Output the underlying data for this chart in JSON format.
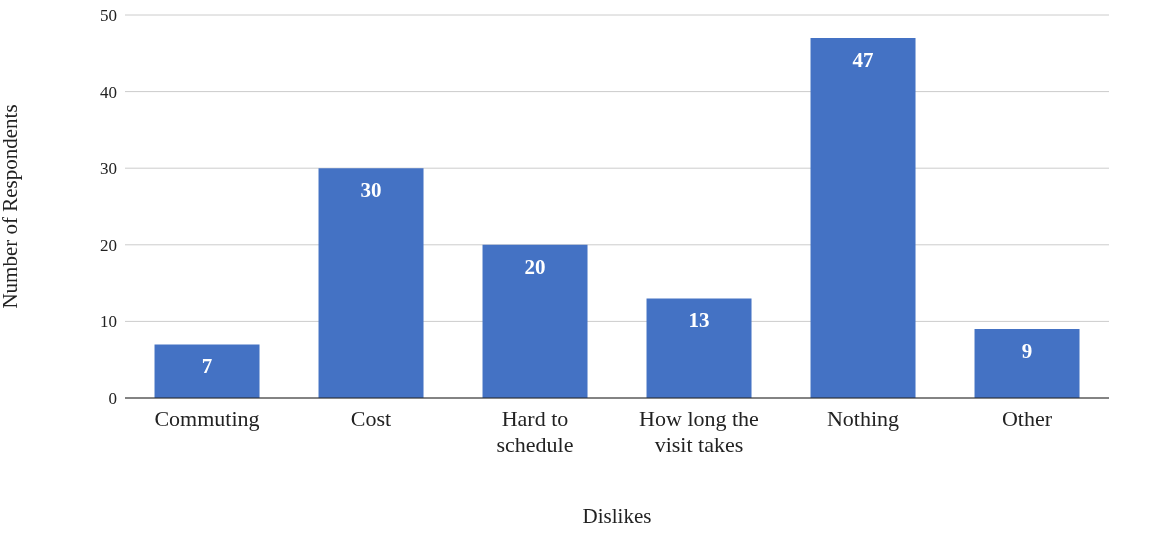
{
  "chart_data": {
    "type": "bar",
    "xlabel": "Dislikes",
    "ylabel": "Number of Respondents",
    "categories": [
      "Commuting",
      "Cost",
      "Hard to schedule",
      "How long the visit takes",
      "Nothing",
      "Other"
    ],
    "values": [
      7,
      30,
      20,
      13,
      47,
      9
    ],
    "color": "#4472c4",
    "ylim": [
      0,
      50
    ],
    "yticks": [
      0,
      10,
      20,
      30,
      40,
      50
    ],
    "grid": "y",
    "data_labels": true
  }
}
